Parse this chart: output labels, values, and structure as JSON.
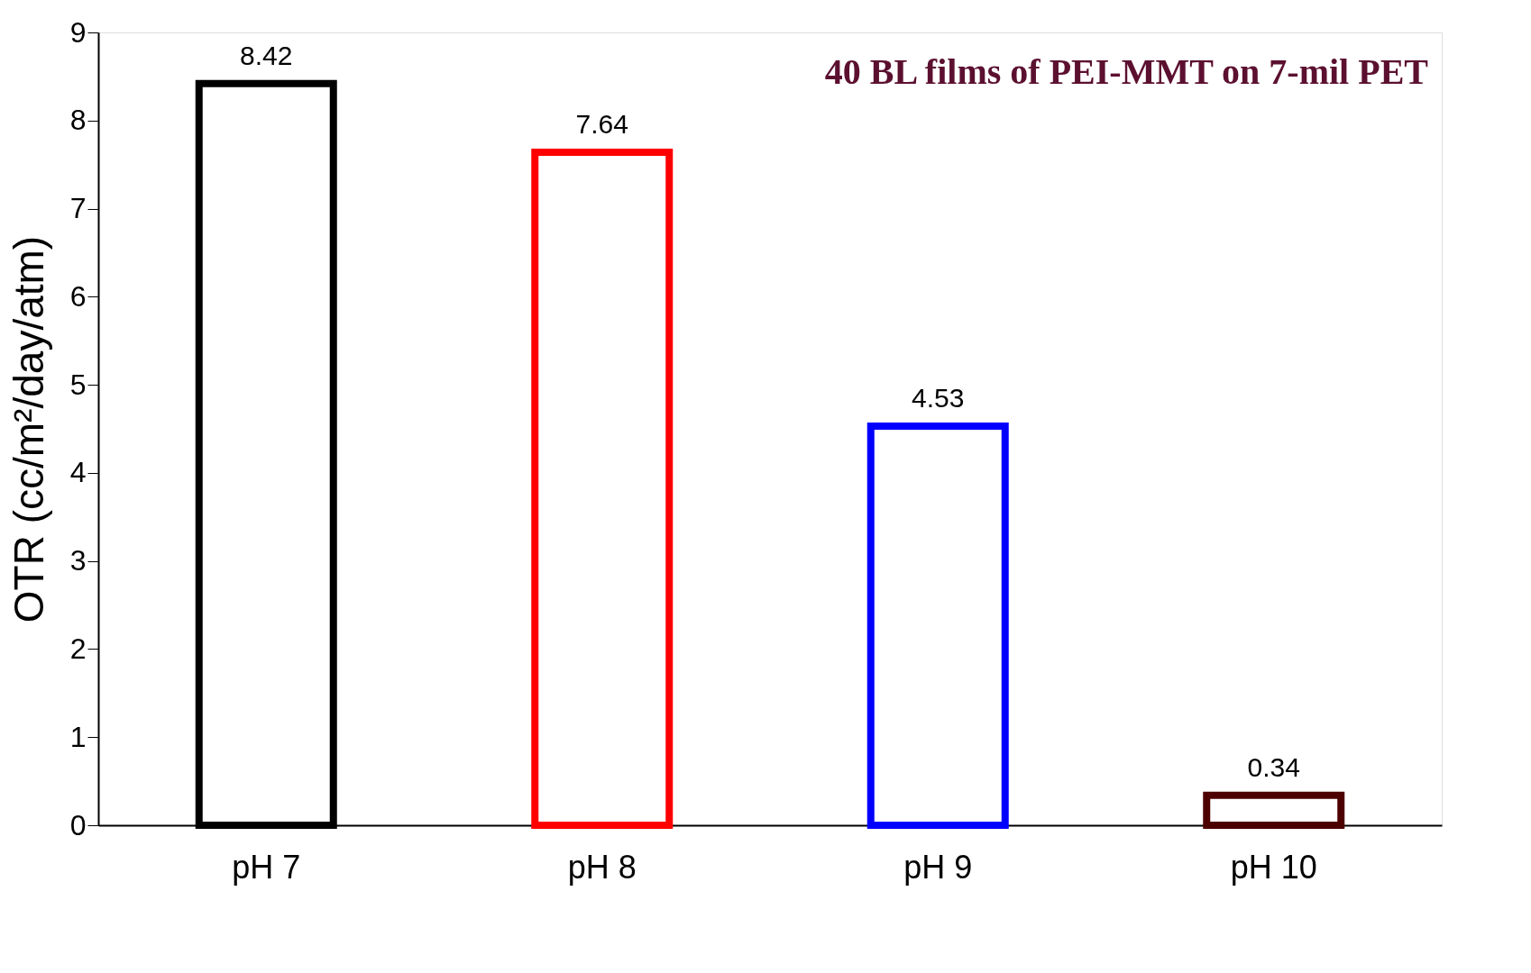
{
  "chart_data": {
    "type": "bar",
    "ylabel": "OTR (cc/m²/day/atm)",
    "categories": [
      "pH 7",
      "pH 8",
      "pH 9",
      "pH 10"
    ],
    "values": [
      8.42,
      7.64,
      4.53,
      0.34
    ],
    "colors": [
      "#000000",
      "#ff0000",
      "#0000ff",
      "#4d0000"
    ],
    "ylim": [
      0,
      9
    ],
    "yticks": [
      0,
      1,
      2,
      3,
      4,
      5,
      6,
      7,
      8,
      9
    ],
    "data_labels": true,
    "grid": false,
    "legend": false,
    "annotations": [
      "40 BL films of PEI-MMT on 7-mil PET"
    ]
  }
}
